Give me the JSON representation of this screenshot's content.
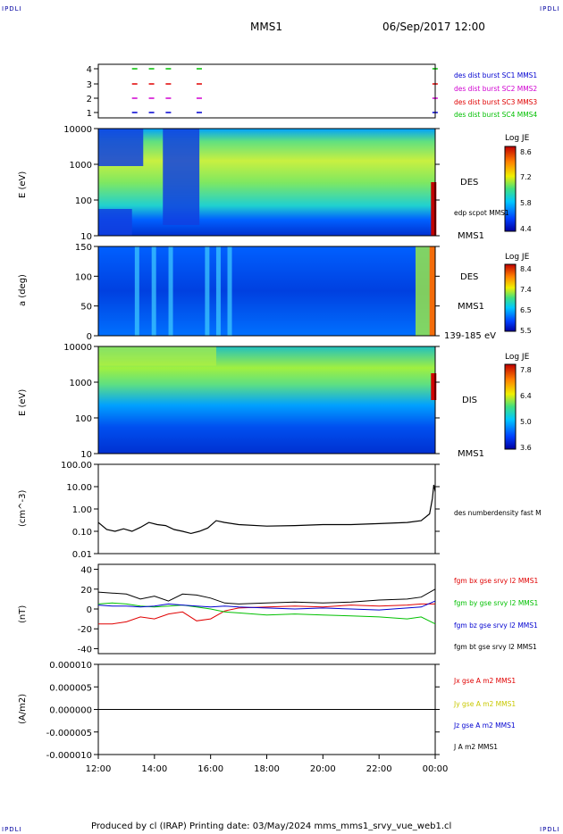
{
  "corners": {
    "tl": "IPDLI",
    "tr": "IPDLI",
    "bl": "IPDLI",
    "br": "IPDLI"
  },
  "header": {
    "mission": "MMS1",
    "date": "06/Sep/2017 12:00"
  },
  "footer": {
    "text": "Produced by cl (IRAP)   Printing date: 03/May/2024   mms_mms1_srvy_vue_web1.cl"
  },
  "colors": {
    "red": "#e00000",
    "green": "#00c000",
    "blue": "#0000d0",
    "magenta": "#d000d0",
    "black": "#000000"
  },
  "chart_data": [
    {
      "type": "scatter",
      "title": "",
      "yticks": [
        "4",
        "3",
        "2",
        "1"
      ],
      "legend": [
        {
          "name": "des dist burst SC1 MMS1",
          "color": "#0000d0"
        },
        {
          "name": "des dist burst SC2 MMS2",
          "color": "#d000d0"
        },
        {
          "name": "des dist burst SC3 MMS3",
          "color": "#e00000"
        },
        {
          "name": "des dist burst SC4 MMS4",
          "color": "#00c000"
        }
      ],
      "bursts": [
        13.2,
        13.8,
        14.4,
        15.5,
        23.9
      ]
    },
    {
      "type": "heatmap",
      "ylabel": "E (eV)",
      "yticks": [
        "10000",
        "1000",
        "100",
        "10"
      ],
      "side": [
        "DES",
        "edp scpot MMS1",
        "MMS1"
      ],
      "colorbar": {
        "title": "Log JE",
        "ticks": [
          "8.6",
          "7.2",
          "5.8",
          "4.4"
        ]
      }
    },
    {
      "type": "heatmap",
      "ylabel": "a (deg)",
      "yticks": [
        "150",
        "100",
        "50",
        "0"
      ],
      "side": [
        "DES",
        "MMS1",
        "139-185 eV"
      ],
      "colorbar": {
        "title": "Log JE",
        "ticks": [
          "8.4",
          "7.4",
          "6.5",
          "5.5"
        ]
      }
    },
    {
      "type": "heatmap",
      "ylabel": "E (eV)",
      "yticks": [
        "10000",
        "1000",
        "100",
        "10"
      ],
      "side": [
        "DIS",
        "MMS1"
      ],
      "colorbar": {
        "title": "Log JE",
        "ticks": [
          "7.8",
          "6.4",
          "5.0",
          "3.6"
        ]
      }
    },
    {
      "type": "line",
      "ylabel": "(cm^-3)",
      "yscale": "log",
      "yticks": [
        "100.00",
        "10.00",
        "1.00",
        "0.10",
        "0.01"
      ],
      "series": [
        {
          "name": "des numberdensity fast M",
          "color": "#000000",
          "x": [
            12.0,
            12.3,
            12.6,
            12.9,
            13.2,
            13.5,
            13.8,
            14.1,
            14.4,
            14.7,
            15.0,
            15.3,
            15.6,
            15.9,
            16.2,
            16.5,
            17.0,
            18.0,
            19.0,
            20.0,
            21.0,
            22.0,
            23.0,
            23.5,
            23.8,
            23.9,
            23.95,
            24.0
          ],
          "y": [
            0.25,
            0.12,
            0.1,
            0.13,
            0.1,
            0.15,
            0.25,
            0.2,
            0.18,
            0.12,
            0.1,
            0.08,
            0.1,
            0.14,
            0.3,
            0.25,
            0.2,
            0.17,
            0.18,
            0.2,
            0.2,
            0.22,
            0.25,
            0.3,
            0.6,
            3.0,
            12.0,
            6.0
          ]
        }
      ]
    },
    {
      "type": "line",
      "ylabel": "(nT)",
      "ylim": [
        -45,
        45
      ],
      "yticks": [
        "40",
        "20",
        "0",
        "-20",
        "-40"
      ],
      "series": [
        {
          "name": "fgm bx gse srvy l2 MMS1",
          "color": "#e00000",
          "x": [
            12,
            12.5,
            13,
            13.5,
            14,
            14.5,
            15,
            15.5,
            16,
            16.5,
            17,
            18,
            19,
            20,
            21,
            22,
            23,
            23.5,
            24
          ],
          "y": [
            -15,
            -15,
            -13,
            -8,
            -10,
            -5,
            -3,
            -12,
            -10,
            -2,
            1,
            2,
            3,
            2,
            4,
            3,
            4,
            5,
            5
          ]
        },
        {
          "name": "fgm by gse srvy l2 MMS1",
          "color": "#00c000",
          "x": [
            12,
            12.5,
            13,
            13.5,
            14,
            14.5,
            15,
            15.5,
            16,
            16.5,
            17,
            18,
            19,
            20,
            21,
            22,
            23,
            23.5,
            24
          ],
          "y": [
            5,
            6,
            5,
            3,
            2,
            3,
            4,
            2,
            0,
            -3,
            -4,
            -6,
            -5,
            -6,
            -7,
            -8,
            -10,
            -8,
            -15
          ]
        },
        {
          "name": "fgm bz gse srvy l2 MMS1",
          "color": "#0000d0",
          "x": [
            12,
            12.5,
            13,
            13.5,
            14,
            14.5,
            15,
            15.5,
            16,
            16.5,
            17,
            18,
            19,
            20,
            21,
            22,
            23,
            23.5,
            24
          ],
          "y": [
            4,
            3,
            3,
            2,
            3,
            5,
            4,
            3,
            2,
            3,
            2,
            1,
            0,
            1,
            0,
            -1,
            1,
            2,
            8
          ]
        },
        {
          "name": "fgm bt gse srvy l2 MMS1",
          "color": "#000000",
          "x": [
            12,
            12.5,
            13,
            13.5,
            14,
            14.5,
            15,
            15.5,
            16,
            16.5,
            17,
            18,
            19,
            20,
            21,
            22,
            23,
            23.5,
            24
          ],
          "y": [
            17,
            16,
            15,
            10,
            13,
            8,
            15,
            14,
            11,
            6,
            5,
            6,
            7,
            6,
            7,
            9,
            10,
            12,
            20
          ]
        }
      ]
    },
    {
      "type": "line",
      "ylabel": "(A/m2)",
      "ylim": [
        -1e-05,
        1e-05
      ],
      "yticks": [
        "0.000010",
        "0.000005",
        "0.000000",
        "-0.000005",
        "-0.000010"
      ],
      "xticks": [
        "12:00",
        "14:00",
        "16:00",
        "18:00",
        "20:00",
        "22:00",
        "00:00"
      ],
      "series": [
        {
          "name": "Jx gse A m2 MMS1",
          "color": "#e00000"
        },
        {
          "name": "Jy gse A m2 MMS1",
          "color": "#c8c800"
        },
        {
          "name": "Jz gse A m2 MMS1",
          "color": "#0000d0"
        },
        {
          "name": "J A m2 MMS1",
          "color": "#000000",
          "x": [
            12,
            14,
            16,
            18,
            20,
            22,
            24
          ],
          "y": [
            0,
            0,
            0,
            0,
            0,
            0,
            0
          ]
        }
      ]
    }
  ]
}
